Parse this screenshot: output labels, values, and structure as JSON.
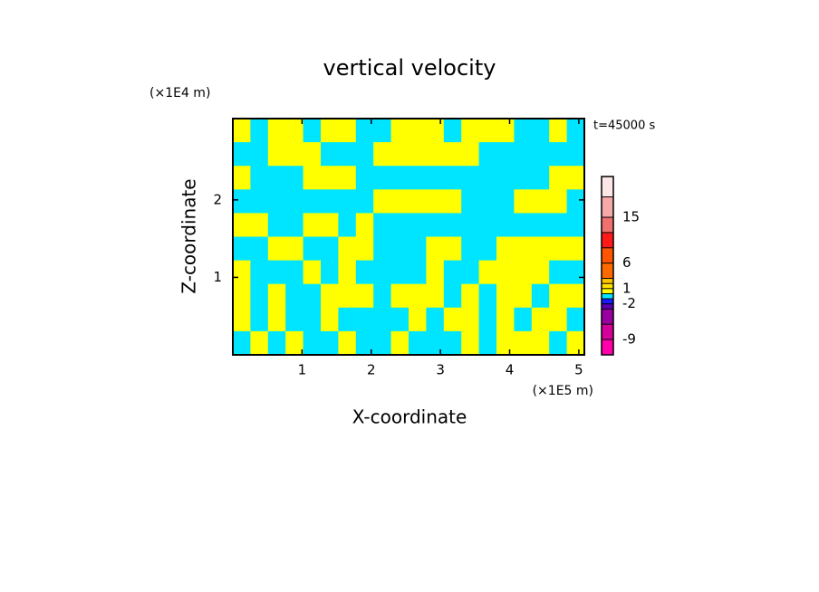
{
  "chart_data": {
    "type": "contour",
    "title": "vertical velocity",
    "ylabel_unit": "(×1E4 m)",
    "xlabel_unit": "(×1E5 m)",
    "annotation": "t=45000 s",
    "xlabel": "X-coordinate",
    "ylabel": "Z-coordinate",
    "xlim": [
      0,
      5.08
    ],
    "xticks": [
      1,
      2,
      3,
      4,
      5
    ],
    "ylim": [
      0,
      3.05
    ],
    "yticks": [
      1,
      2
    ],
    "z": [
      [
        0.5,
        -0.5,
        0.5,
        0.5,
        -0.5,
        0.5,
        0.5,
        -0.5,
        -0.5,
        0.5,
        0.5,
        0.5,
        -0.5,
        0.5,
        0.5,
        0.5,
        -0.5,
        -0.5,
        0.5,
        -0.5
      ],
      [
        -0.5,
        -0.5,
        0.5,
        0.5,
        0.5,
        -0.5,
        -0.5,
        -0.5,
        0.5,
        0.5,
        0.5,
        0.5,
        0.5,
        0.5,
        -0.5,
        -0.5,
        -0.5,
        -0.5,
        -0.5,
        -0.5
      ],
      [
        0.5,
        -0.5,
        -0.5,
        -0.5,
        0.5,
        0.5,
        0.5,
        -0.5,
        -0.5,
        -0.5,
        -0.5,
        -0.5,
        -0.5,
        -0.5,
        -0.5,
        -0.5,
        -0.5,
        -0.5,
        0.5,
        0.5
      ],
      [
        -0.5,
        -0.5,
        -0.5,
        -0.5,
        -0.5,
        -0.5,
        -0.5,
        -0.5,
        0.5,
        0.5,
        0.5,
        0.5,
        0.5,
        -0.5,
        -0.5,
        -0.5,
        0.5,
        0.5,
        0.5,
        -0.5
      ],
      [
        0.5,
        0.5,
        -0.5,
        -0.5,
        0.5,
        0.5,
        -0.5,
        0.5,
        -0.5,
        -0.5,
        -0.5,
        -0.5,
        -0.5,
        -0.5,
        -0.5,
        -0.5,
        -0.5,
        -0.5,
        -0.5,
        -0.5
      ],
      [
        -0.5,
        -0.5,
        0.5,
        0.5,
        -0.5,
        -0.5,
        0.5,
        0.5,
        -0.5,
        -0.5,
        -0.5,
        0.5,
        0.5,
        -0.5,
        -0.5,
        0.5,
        0.5,
        0.5,
        0.5,
        0.5
      ],
      [
        0.5,
        -0.5,
        -0.5,
        -0.5,
        0.5,
        -0.5,
        0.5,
        -0.5,
        -0.5,
        -0.5,
        -0.5,
        0.5,
        -0.5,
        -0.5,
        0.5,
        0.5,
        0.5,
        0.5,
        -0.5,
        -0.5
      ],
      [
        0.5,
        -0.5,
        0.5,
        -0.5,
        -0.5,
        0.5,
        0.5,
        0.5,
        -0.5,
        0.5,
        0.5,
        0.5,
        -0.5,
        0.5,
        -0.5,
        0.5,
        0.5,
        -0.5,
        0.5,
        0.5
      ],
      [
        0.5,
        -0.5,
        0.5,
        -0.5,
        -0.5,
        0.5,
        -0.5,
        -0.5,
        -0.5,
        -0.5,
        0.5,
        -0.5,
        0.5,
        0.5,
        -0.5,
        0.5,
        -0.5,
        0.5,
        0.5,
        -0.5
      ],
      [
        -0.5,
        0.5,
        -0.5,
        0.5,
        -0.5,
        -0.5,
        0.5,
        -0.5,
        -0.5,
        0.5,
        -0.5,
        -0.5,
        -0.5,
        0.5,
        -0.5,
        0.5,
        0.5,
        0.5,
        -0.5,
        0.5
      ]
    ],
    "colorbar": {
      "levels": [
        -12,
        -9,
        -6,
        -3,
        -2,
        -1,
        0,
        1,
        2,
        3,
        6,
        9,
        12,
        15,
        19,
        23
      ],
      "colors": [
        "#ff00aa",
        "#d4009a",
        "#9900a0",
        "#5a00b4",
        "#1a1aff",
        "#00e5ff",
        "#ffff00",
        "#ffe000",
        "#ffc400",
        "#ff6a00",
        "#ff5500",
        "#ff1a1a",
        "#f07070",
        "#f4a8a8",
        "#fde6e6"
      ],
      "ticks": [
        -9,
        -2,
        1,
        6,
        15
      ]
    }
  }
}
